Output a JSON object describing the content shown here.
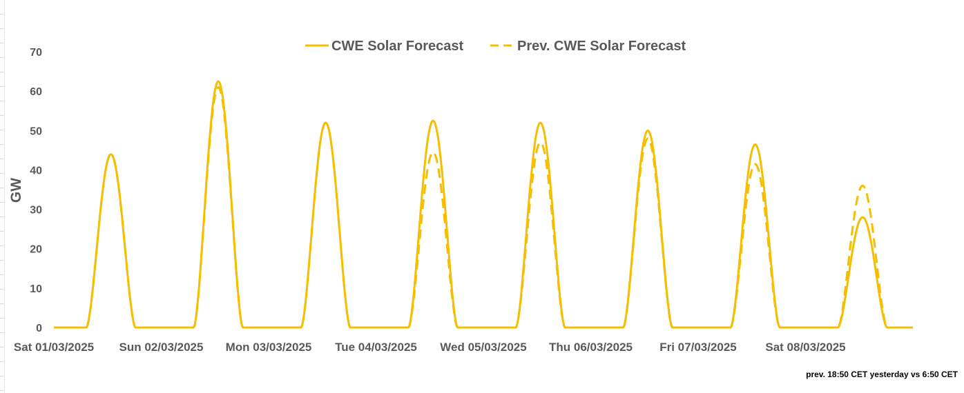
{
  "chart_data": {
    "type": "line",
    "title": "",
    "ylabel": "GW",
    "xlabel": "",
    "ylim": [
      0,
      70
    ],
    "yticks": [
      "0",
      "10",
      "20",
      "30",
      "40",
      "50",
      "60",
      "70"
    ],
    "categories": [
      "Sat 01/03/2025",
      "Sun 02/03/2025",
      "Mon 03/03/2025",
      "Tue 04/03/2025",
      "Wed 05/03/2025",
      "Thu 06/03/2025",
      "Fri 07/03/2025",
      "Sat 08/03/2025"
    ],
    "series": [
      {
        "name": "CWE Solar Forecast",
        "style": "solid",
        "daily_peak_gw": [
          44,
          62.5,
          52,
          52.5,
          52,
          50,
          46.5,
          28
        ]
      },
      {
        "name": "Prev. CWE Solar Forecast",
        "style": "dashed",
        "daily_peak_gw": [
          44,
          61,
          52,
          44.5,
          47,
          48,
          41.5,
          36
        ]
      }
    ],
    "daylight_hours": {
      "sunrise": 7.3,
      "sunset": 18.2
    },
    "legend": "top-center",
    "grid": false,
    "line_color": "#F5BE00",
    "annotation": "prev. 18:50 CET yesterday vs  6:50 CET"
  }
}
